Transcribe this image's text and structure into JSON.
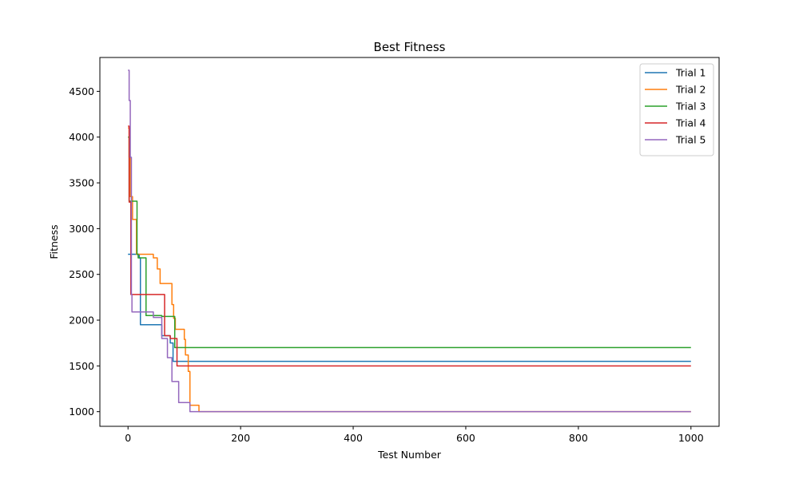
{
  "chart_data": {
    "type": "line",
    "title": "Best Fitness",
    "xlabel": "Test Number",
    "ylabel": "Fitness",
    "xlim": [
      -50,
      1050
    ],
    "ylim": [
      840,
      4870
    ],
    "xticks": [
      0,
      200,
      400,
      600,
      800,
      1000
    ],
    "yticks": [
      1000,
      1500,
      2000,
      2500,
      3000,
      3500,
      4000,
      4500
    ],
    "grid": false,
    "legend_position": "top-right",
    "series": [
      {
        "name": "Trial 1",
        "color": "#1f77b4",
        "points": [
          [
            0,
            2720
          ],
          [
            20,
            2720
          ],
          [
            20,
            2680
          ],
          [
            22,
            2680
          ],
          [
            22,
            1950
          ],
          [
            60,
            1950
          ],
          [
            60,
            1830
          ],
          [
            75,
            1830
          ],
          [
            75,
            1750
          ],
          [
            80,
            1750
          ],
          [
            80,
            1550
          ],
          [
            1000,
            1550
          ]
        ]
      },
      {
        "name": "Trial 2",
        "color": "#ff7f0e",
        "points": [
          [
            0,
            4100
          ],
          [
            2,
            4100
          ],
          [
            2,
            3780
          ],
          [
            4,
            3780
          ],
          [
            4,
            3350
          ],
          [
            8,
            3350
          ],
          [
            8,
            3100
          ],
          [
            15,
            3100
          ],
          [
            15,
            2720
          ],
          [
            45,
            2720
          ],
          [
            45,
            2680
          ],
          [
            52,
            2680
          ],
          [
            52,
            2560
          ],
          [
            57,
            2560
          ],
          [
            57,
            2400
          ],
          [
            78,
            2400
          ],
          [
            78,
            2170
          ],
          [
            81,
            2170
          ],
          [
            81,
            2020
          ],
          [
            84,
            2020
          ],
          [
            84,
            1900
          ],
          [
            100,
            1900
          ],
          [
            100,
            1790
          ],
          [
            102,
            1790
          ],
          [
            102,
            1620
          ],
          [
            107,
            1620
          ],
          [
            107,
            1440
          ],
          [
            110,
            1440
          ],
          [
            110,
            1070
          ],
          [
            126,
            1070
          ],
          [
            126,
            1000
          ],
          [
            1000,
            1000
          ]
        ]
      },
      {
        "name": "Trial 3",
        "color": "#2ca02c",
        "points": [
          [
            0,
            4000
          ],
          [
            2,
            4000
          ],
          [
            2,
            3300
          ],
          [
            16,
            3300
          ],
          [
            16,
            2720
          ],
          [
            18,
            2720
          ],
          [
            18,
            2680
          ],
          [
            32,
            2680
          ],
          [
            32,
            2050
          ],
          [
            60,
            2050
          ],
          [
            60,
            2040
          ],
          [
            83,
            2040
          ],
          [
            83,
            1700
          ],
          [
            1000,
            1700
          ]
        ]
      },
      {
        "name": "Trial 4",
        "color": "#d62728",
        "points": [
          [
            0,
            4120
          ],
          [
            2,
            4120
          ],
          [
            2,
            3290
          ],
          [
            5,
            3290
          ],
          [
            5,
            2280
          ],
          [
            65,
            2280
          ],
          [
            65,
            1830
          ],
          [
            75,
            1830
          ],
          [
            75,
            1800
          ],
          [
            87,
            1800
          ],
          [
            87,
            1500
          ],
          [
            1000,
            1500
          ]
        ]
      },
      {
        "name": "Trial 5",
        "color": "#9467bd",
        "points": [
          [
            0,
            4730
          ],
          [
            2,
            4730
          ],
          [
            2,
            4400
          ],
          [
            4,
            4400
          ],
          [
            4,
            3780
          ],
          [
            6,
            3780
          ],
          [
            6,
            2280
          ],
          [
            7,
            2280
          ],
          [
            7,
            2090
          ],
          [
            45,
            2090
          ],
          [
            45,
            2030
          ],
          [
            60,
            2030
          ],
          [
            60,
            1800
          ],
          [
            70,
            1800
          ],
          [
            70,
            1590
          ],
          [
            78,
            1590
          ],
          [
            78,
            1330
          ],
          [
            90,
            1330
          ],
          [
            90,
            1100
          ],
          [
            110,
            1100
          ],
          [
            110,
            1000
          ],
          [
            1000,
            1000
          ]
        ]
      }
    ]
  }
}
